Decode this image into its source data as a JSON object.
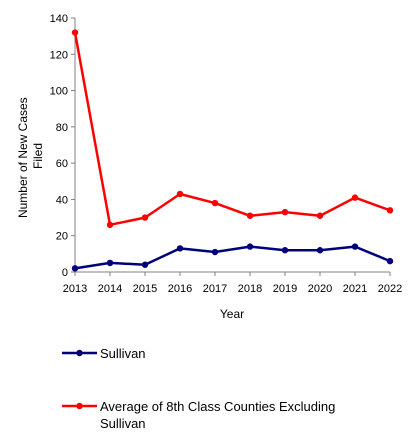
{
  "chart_data": {
    "type": "line",
    "x": [
      "2013",
      "2014",
      "2015",
      "2016",
      "2017",
      "2018",
      "2019",
      "2020",
      "2021",
      "2022"
    ],
    "series": [
      {
        "name": "Sullivan",
        "color": "#00007a",
        "values": [
          2,
          5,
          4,
          13,
          11,
          14,
          12,
          12,
          14,
          6
        ]
      },
      {
        "name": "Average of 8th Class Counties Excluding Sullivan",
        "color": "#ff0000",
        "values": [
          132,
          26,
          30,
          43,
          38,
          31,
          33,
          31,
          41,
          34
        ]
      }
    ],
    "xlabel": "Year",
    "ylabel_lines": [
      "Number of New Cases",
      "Filed"
    ],
    "ylim": [
      0,
      140
    ],
    "yticks": [
      0,
      20,
      40,
      60,
      80,
      100,
      120,
      140
    ],
    "legend_position": "bottom",
    "legend_lines": [
      [
        "Sullivan"
      ],
      [
        "Average of 8th Class Counties Excluding",
        "Sullivan"
      ]
    ]
  }
}
